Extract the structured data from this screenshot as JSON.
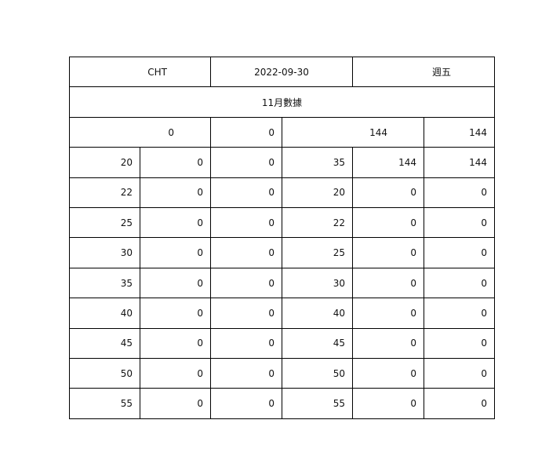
{
  "header": {
    "code": "CHT",
    "date": "2022-09-30",
    "weekday": "週五"
  },
  "title": "11月數據",
  "summary": {
    "a": "0",
    "b": "0",
    "c": "144",
    "d": "144"
  },
  "rows": [
    [
      "20",
      "0",
      "0",
      "35",
      "144",
      "144"
    ],
    [
      "22",
      "0",
      "0",
      "20",
      "0",
      "0"
    ],
    [
      "25",
      "0",
      "0",
      "22",
      "0",
      "0"
    ],
    [
      "30",
      "0",
      "0",
      "25",
      "0",
      "0"
    ],
    [
      "35",
      "0",
      "0",
      "30",
      "0",
      "0"
    ],
    [
      "40",
      "0",
      "0",
      "40",
      "0",
      "0"
    ],
    [
      "45",
      "0",
      "0",
      "45",
      "0",
      "0"
    ],
    [
      "50",
      "0",
      "0",
      "50",
      "0",
      "0"
    ],
    [
      "55",
      "0",
      "0",
      "55",
      "0",
      "0"
    ]
  ]
}
